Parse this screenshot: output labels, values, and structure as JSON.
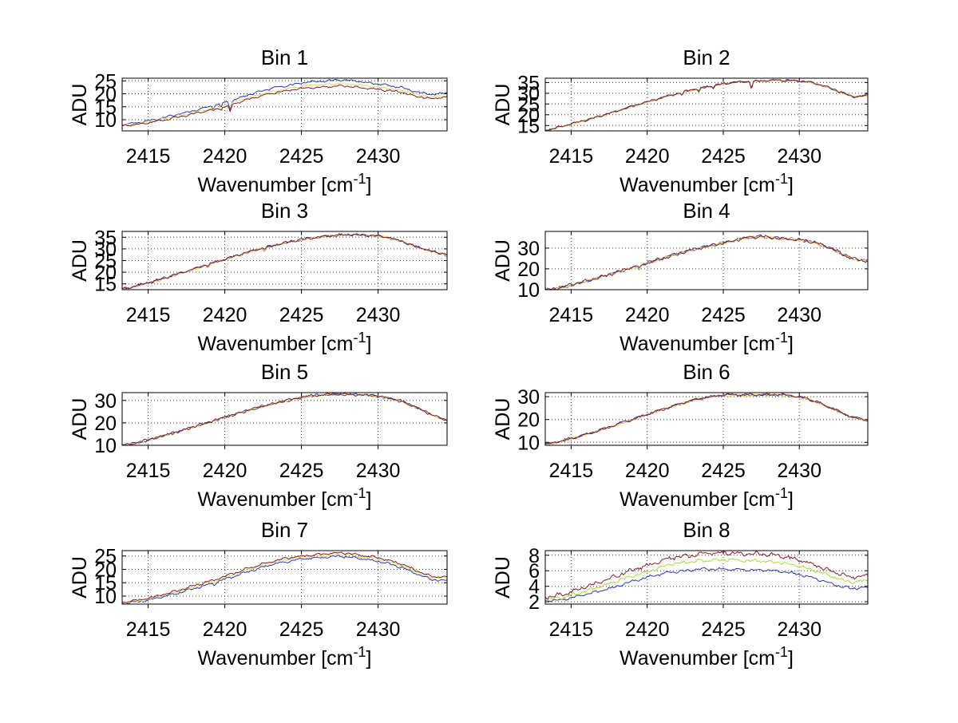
{
  "figure": {
    "background": "#ffffff",
    "colors": {
      "axis": "#000000",
      "grid": "#3a3a5e",
      "text": "#000000"
    }
  },
  "chart_data": [
    {
      "type": "line",
      "title": "Bin 1",
      "xlabel": {
        "text": "Wavenumber [cm",
        "sup": "-1",
        "close": "]"
      },
      "ylabel": "ADU",
      "xlim": [
        2413.3,
        2434.5
      ],
      "xticks": [
        2415,
        2420,
        2425,
        2430
      ],
      "ylim": [
        5.7,
        26.0
      ],
      "yticks": [
        10,
        15,
        20,
        25
      ],
      "grid": true,
      "x_start": 2413.5,
      "x_step": 1,
      "dips": [
        {
          "x": 2419.25,
          "depth": 1.0,
          "width": 0.06
        },
        {
          "x": 2419.75,
          "depth": 1.2,
          "width": 0.06
        },
        {
          "x": 2420.35,
          "depth": 3.0,
          "width": 0.07
        }
      ],
      "series": [
        {
          "name": "blue",
          "color": "#2839b8",
          "noise": 0.25,
          "trend": [
            8.3,
            9.0,
            10.2,
            11.5,
            12.8,
            14.2,
            15.8,
            17.5,
            19.5,
            21.3,
            22.6,
            23.6,
            24.6,
            24.9,
            25.4,
            25.0,
            24.1,
            23.4,
            22.4,
            20.8,
            19.6,
            20.4
          ]
        },
        {
          "name": "yellow",
          "color": "#d8de66",
          "noise": 0.25,
          "trend": [
            8.0,
            8.6,
            9.7,
            10.9,
            12.2,
            13.5,
            15.0,
            16.6,
            18.4,
            20.1,
            21.4,
            22.4,
            23.3,
            23.5,
            24.0,
            23.6,
            22.8,
            22.2,
            21.3,
            19.8,
            18.7,
            19.4
          ]
        },
        {
          "name": "dark-red",
          "color": "#8e1b24",
          "noise": 0.25,
          "trend": [
            7.8,
            8.3,
            9.4,
            10.5,
            11.7,
            13.0,
            14.4,
            16.0,
            17.7,
            19.4,
            20.7,
            21.6,
            22.4,
            22.6,
            23.1,
            22.7,
            22.0,
            21.4,
            20.6,
            19.1,
            18.0,
            18.8
          ]
        }
      ]
    },
    {
      "type": "line",
      "title": "Bin 2",
      "xlabel": {
        "text": "Wavenumber [cm",
        "sup": "-1",
        "close": "]"
      },
      "ylabel": "ADU",
      "xlim": [
        2413.3,
        2434.5
      ],
      "xticks": [
        2415,
        2420,
        2425,
        2430
      ],
      "ylim": [
        12.5,
        37.0
      ],
      "yticks": [
        15,
        20,
        25,
        30,
        35
      ],
      "grid": true,
      "x_start": 2413.5,
      "x_step": 1,
      "trend": [
        13.0,
        14.8,
        16.6,
        18.6,
        20.7,
        22.8,
        25.0,
        27.0,
        29.0,
        30.9,
        32.5,
        33.8,
        35.0,
        35.5,
        35.8,
        36.0,
        36.0,
        35.4,
        33.8,
        31.2,
        28.4,
        29.0
      ],
      "dips": [
        {
          "x": 2422.3,
          "depth": 1.3,
          "width": 0.06
        },
        {
          "x": 2423.4,
          "depth": 1.6,
          "width": 0.06
        },
        {
          "x": 2424.35,
          "depth": 1.2,
          "width": 0.05
        },
        {
          "x": 2426.85,
          "depth": 3.2,
          "width": 0.06
        }
      ],
      "series": [
        {
          "name": "blue",
          "color": "#2839b8",
          "noise": 0.3,
          "offset": -0.05
        },
        {
          "name": "yellow",
          "color": "#d8de66",
          "noise": 0.26,
          "offset": -0.2
        },
        {
          "name": "dark-red",
          "color": "#8e1b24",
          "noise": 0.3,
          "offset": 0
        }
      ]
    },
    {
      "type": "line",
      "title": "Bin 3",
      "xlabel": {
        "text": "Wavenumber [cm",
        "sup": "-1",
        "close": "]"
      },
      "ylabel": "ADU",
      "xlim": [
        2413.3,
        2434.5
      ],
      "xticks": [
        2415,
        2420,
        2425,
        2430
      ],
      "ylim": [
        12.5,
        37.5
      ],
      "yticks": [
        15,
        20,
        25,
        30,
        35
      ],
      "grid": true,
      "x_start": 2413.5,
      "x_step": 1,
      "trend": [
        13.0,
        14.6,
        16.4,
        18.4,
        20.4,
        22.5,
        24.6,
        26.6,
        28.6,
        30.4,
        32.0,
        33.4,
        34.6,
        35.4,
        36.0,
        36.2,
        35.8,
        35.2,
        33.4,
        31.0,
        29.0,
        27.6
      ],
      "dips": [
        {
          "x": 2418.9,
          "depth": 0.9,
          "width": 0.06
        },
        {
          "x": 2422.6,
          "depth": 1.0,
          "width": 0.06
        }
      ],
      "series": [
        {
          "name": "blue",
          "color": "#2839b8",
          "noise": 0.32,
          "offset": -0.05
        },
        {
          "name": "yellow",
          "color": "#d8de66",
          "noise": 0.28,
          "offset": -0.2
        },
        {
          "name": "dark-red",
          "color": "#8e1b24",
          "noise": 0.32,
          "offset": 0
        }
      ]
    },
    {
      "type": "line",
      "title": "Bin 4",
      "xlabel": {
        "text": "Wavenumber [cm",
        "sup": "-1",
        "close": "]"
      },
      "ylabel": "ADU",
      "xlim": [
        2413.3,
        2434.5
      ],
      "xticks": [
        2415,
        2420,
        2425,
        2430
      ],
      "ylim": [
        10.0,
        38.0
      ],
      "yticks": [
        10,
        20,
        30
      ],
      "grid": true,
      "x_start": 2413.5,
      "x_step": 1,
      "trend": [
        10.0,
        11.4,
        13.2,
        15.2,
        17.3,
        19.5,
        21.8,
        24.0,
        26.2,
        28.3,
        30.2,
        31.8,
        33.2,
        35.0,
        35.6,
        34.8,
        34.4,
        33.6,
        31.6,
        28.4,
        24.8,
        23.8
      ],
      "dips": [
        {
          "x": 2419.5,
          "depth": 1.6,
          "width": 0.08
        }
      ],
      "series": [
        {
          "name": "blue",
          "color": "#2839b8",
          "noise": 0.45,
          "offset": -0.05
        },
        {
          "name": "yellow",
          "color": "#d8de66",
          "noise": 0.42,
          "offset": -0.2
        },
        {
          "name": "dark-red",
          "color": "#8e1b24",
          "noise": 0.45,
          "offset": 0
        }
      ]
    },
    {
      "type": "line",
      "title": "Bin 5",
      "xlabel": {
        "text": "Wavenumber [cm",
        "sup": "-1",
        "close": "]"
      },
      "ylabel": "ADU",
      "xlim": [
        2413.3,
        2434.5
      ],
      "xticks": [
        2415,
        2420,
        2425,
        2430
      ],
      "ylim": [
        10.0,
        33.5
      ],
      "yticks": [
        10,
        20,
        30
      ],
      "grid": true,
      "x_start": 2413.5,
      "x_step": 1,
      "trend": [
        10.2,
        11.6,
        13.4,
        15.3,
        17.3,
        19.4,
        21.5,
        23.6,
        25.6,
        27.5,
        29.2,
        30.8,
        32.0,
        32.6,
        32.8,
        32.7,
        32.3,
        31.4,
        29.8,
        27.0,
        23.6,
        21.2
      ],
      "dips": [],
      "series": [
        {
          "name": "blue",
          "color": "#2839b8",
          "noise": 0.35,
          "offset": -0.05
        },
        {
          "name": "yellow",
          "color": "#d8de66",
          "noise": 0.3,
          "offset": -0.2
        },
        {
          "name": "dark-red",
          "color": "#8e1b24",
          "noise": 0.35,
          "offset": 0
        }
      ]
    },
    {
      "type": "line",
      "title": "Bin 6",
      "xlabel": {
        "text": "Wavenumber [cm",
        "sup": "-1",
        "close": "]"
      },
      "ylabel": "ADU",
      "xlim": [
        2413.3,
        2434.5
      ],
      "xticks": [
        2415,
        2420,
        2425,
        2430
      ],
      "ylim": [
        8.7,
        31.8
      ],
      "yticks": [
        10,
        20,
        30
      ],
      "grid": true,
      "x_start": 2413.5,
      "x_step": 1,
      "trend": [
        9.3,
        10.8,
        12.6,
        14.6,
        16.7,
        18.9,
        21.2,
        23.4,
        25.5,
        27.6,
        29.2,
        30.4,
        30.9,
        30.7,
        30.9,
        31.0,
        30.4,
        29.2,
        26.8,
        23.8,
        21.0,
        19.6
      ],
      "dips": [],
      "series": [
        {
          "name": "blue",
          "color": "#2839b8",
          "noise": 0.35,
          "offset": -0.05
        },
        {
          "name": "yellow",
          "color": "#d8de66",
          "noise": 0.3,
          "offset": -0.2
        },
        {
          "name": "dark-red",
          "color": "#8e1b24",
          "noise": 0.35,
          "offset": 0
        }
      ]
    },
    {
      "type": "line",
      "title": "Bin 7",
      "xlabel": {
        "text": "Wavenumber [cm",
        "sup": "-1",
        "close": "]"
      },
      "ylabel": "ADU",
      "xlim": [
        2413.3,
        2434.5
      ],
      "xticks": [
        2415,
        2420,
        2425,
        2430
      ],
      "ylim": [
        7.0,
        27.0
      ],
      "yticks": [
        10,
        15,
        20,
        25
      ],
      "grid": true,
      "x_start": 2413.5,
      "x_step": 1,
      "dips": [
        {
          "x": 2419.3,
          "depth": 0.8,
          "width": 0.06
        }
      ],
      "series": [
        {
          "name": "blue",
          "color": "#2839b8",
          "noise": 0.28,
          "trend": [
            7.3,
            7.9,
            9.1,
            10.5,
            12.0,
            13.6,
            15.4,
            17.2,
            19.1,
            20.9,
            22.4,
            23.4,
            24.1,
            24.5,
            24.9,
            24.3,
            23.4,
            22.4,
            20.8,
            18.4,
            16.1,
            15.9
          ]
        },
        {
          "name": "yellow",
          "color": "#d8de66",
          "noise": 0.28,
          "trend": [
            7.6,
            8.3,
            9.5,
            11.0,
            12.5,
            14.2,
            16.0,
            17.9,
            19.8,
            21.6,
            23.1,
            24.1,
            24.8,
            25.2,
            25.6,
            25.0,
            24.2,
            23.2,
            21.5,
            19.1,
            16.9,
            16.6
          ]
        },
        {
          "name": "dark-red",
          "color": "#8e1b24",
          "noise": 0.28,
          "trend": [
            7.8,
            8.6,
            9.9,
            11.4,
            13.0,
            14.7,
            16.5,
            18.4,
            20.3,
            22.1,
            23.6,
            24.6,
            25.3,
            25.8,
            26.2,
            25.6,
            24.7,
            23.7,
            22.0,
            19.6,
            17.3,
            17.0
          ]
        }
      ]
    },
    {
      "type": "line",
      "title": "Bin 8",
      "xlabel": {
        "text": "Wavenumber [cm",
        "sup": "-1",
        "close": "]"
      },
      "ylabel": "ADU",
      "xlim": [
        2413.3,
        2434.5
      ],
      "xticks": [
        2415,
        2420,
        2425,
        2430
      ],
      "ylim": [
        1.7,
        8.6
      ],
      "yticks": [
        2,
        4,
        6,
        8
      ],
      "grid": true,
      "x_start": 2413.5,
      "x_step": 1,
      "dips": [],
      "series": [
        {
          "name": "blue",
          "color": "#2839b8",
          "noise": 0.11,
          "trend": [
            2.1,
            2.3,
            2.7,
            3.2,
            3.7,
            4.3,
            4.9,
            5.4,
            5.8,
            6.0,
            6.2,
            6.2,
            6.2,
            6.1,
            6.1,
            6.0,
            5.7,
            5.3,
            4.7,
            4.1,
            3.7,
            3.9
          ]
        },
        {
          "name": "yellow-green",
          "color": "#a9d939",
          "noise": 0.13,
          "trend": [
            2.3,
            2.6,
            3.1,
            3.7,
            4.3,
            5.0,
            5.6,
            6.2,
            6.8,
            7.1,
            7.3,
            7.4,
            7.4,
            7.3,
            7.3,
            7.1,
            6.8,
            6.3,
            5.7,
            5.0,
            4.5,
            4.8
          ]
        },
        {
          "name": "dark-red",
          "color": "#8e1b24",
          "noise": 0.16,
          "trend": [
            2.6,
            3.0,
            3.6,
            4.3,
            5.0,
            5.7,
            6.4,
            7.0,
            7.6,
            7.9,
            8.2,
            8.3,
            8.3,
            8.2,
            8.2,
            8.0,
            7.6,
            7.1,
            6.4,
            5.7,
            5.2,
            5.4
          ]
        }
      ]
    }
  ]
}
